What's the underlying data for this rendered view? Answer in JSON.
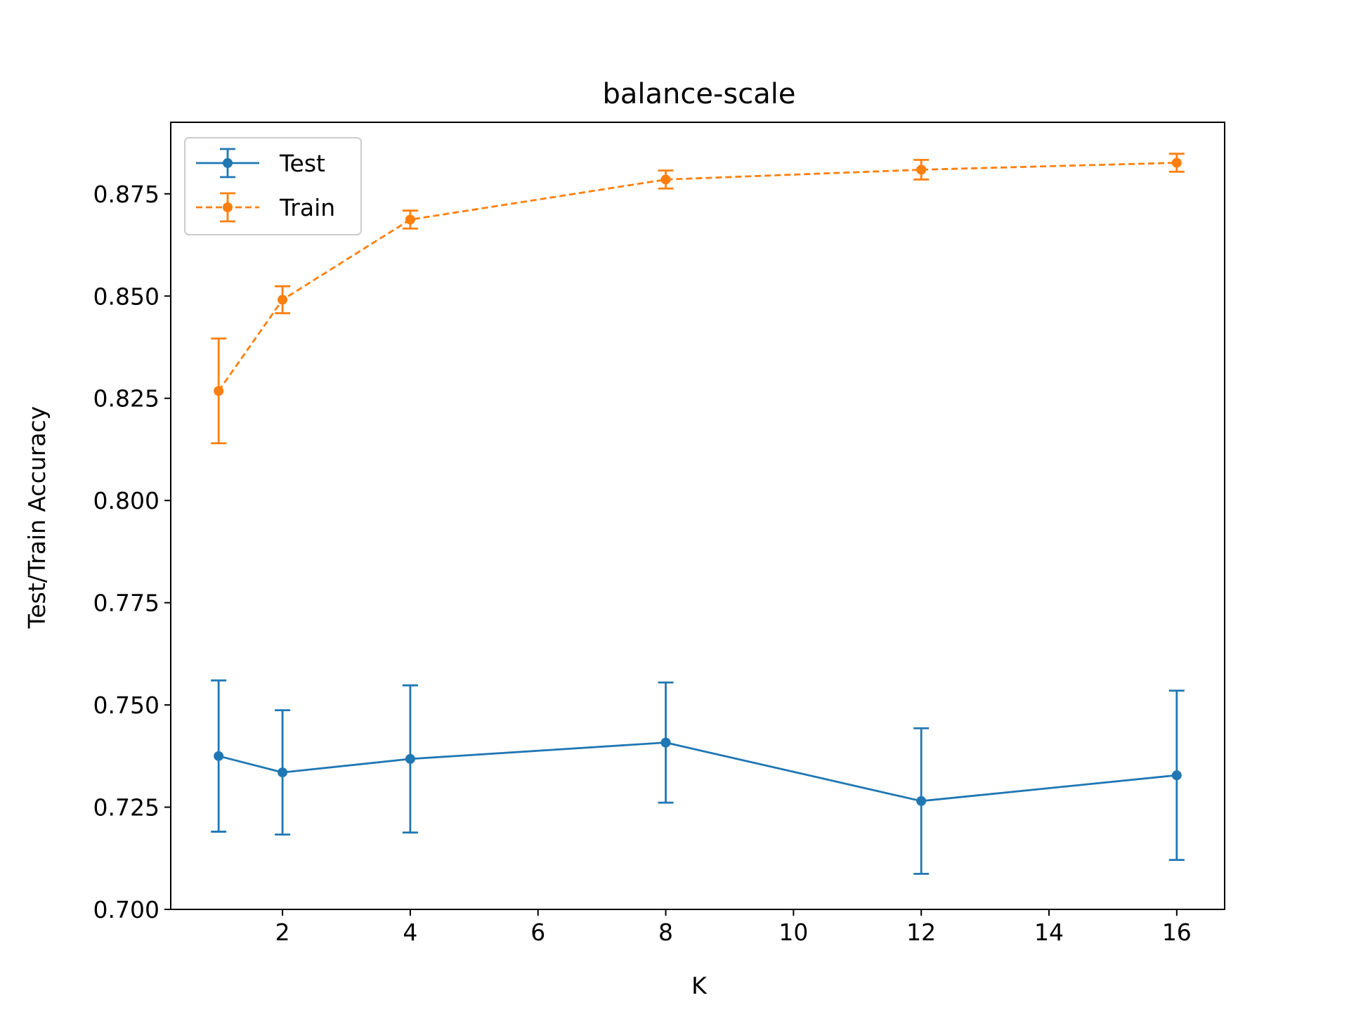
{
  "chart_data": {
    "type": "line",
    "title": "balance-scale",
    "xlabel": "K",
    "ylabel": "Test/Train Accuracy",
    "xlim": [
      0.25,
      16.75
    ],
    "ylim": [
      0.7,
      0.8925
    ],
    "xticks": [
      2,
      4,
      6,
      8,
      10,
      12,
      14,
      16
    ],
    "yticks": [
      0.7,
      0.725,
      0.75,
      0.775,
      0.8,
      0.825,
      0.85,
      0.875
    ],
    "x": [
      1,
      2,
      4,
      8,
      12,
      16
    ],
    "grid": false,
    "legend_position": "upper-left",
    "series": [
      {
        "name": "Test",
        "color": "#1f77b4",
        "linestyle": "solid",
        "values": [
          0.7375,
          0.7335,
          0.7368,
          0.7408,
          0.7265,
          0.7328
        ],
        "error": [
          0.0185,
          0.0152,
          0.018,
          0.0147,
          0.0178,
          0.0207
        ]
      },
      {
        "name": "Train",
        "color": "#ff7f0e",
        "linestyle": "dashed",
        "values": [
          0.8268,
          0.8491,
          0.8687,
          0.8785,
          0.8809,
          0.8826
        ],
        "error": [
          0.0128,
          0.0033,
          0.0022,
          0.0022,
          0.0024,
          0.0022
        ]
      }
    ]
  }
}
